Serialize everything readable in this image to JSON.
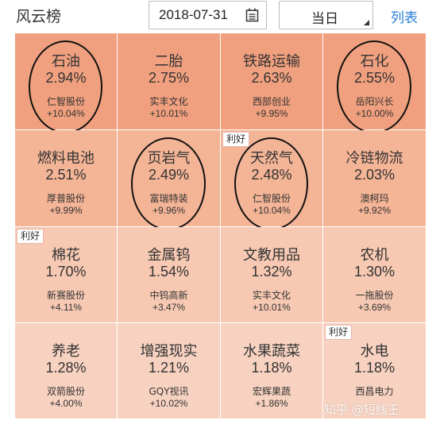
{
  "header": {
    "title": "风云榜",
    "date_value": "2018-07-31",
    "period_value": "当日",
    "list_label": "列表"
  },
  "colors": {
    "row1": "#f0a07e",
    "row2": "#f4b496",
    "row3": "#f7c9b3",
    "row4": "#f8d2c1",
    "link": "#2a7fd4"
  },
  "tiles": [
    {
      "name": "石油",
      "pct": "2.94%",
      "stock": "仁智股份",
      "stock_pct": "+10.04%",
      "badge": "",
      "circled": true
    },
    {
      "name": "二胎",
      "pct": "2.75%",
      "stock": "实丰文化",
      "stock_pct": "+10.01%",
      "badge": "",
      "circled": false
    },
    {
      "name": "铁路运输",
      "pct": "2.63%",
      "stock": "西部创业",
      "stock_pct": "+9.95%",
      "badge": "",
      "circled": false
    },
    {
      "name": "石化",
      "pct": "2.55%",
      "stock": "岳阳兴长",
      "stock_pct": "+10.00%",
      "badge": "",
      "circled": true
    },
    {
      "name": "燃料电池",
      "pct": "2.51%",
      "stock": "厚普股份",
      "stock_pct": "+9.99%",
      "badge": "",
      "circled": false
    },
    {
      "name": "页岩气",
      "pct": "2.49%",
      "stock": "富瑞特装",
      "stock_pct": "+9.96%",
      "badge": "",
      "circled": true
    },
    {
      "name": "天然气",
      "pct": "2.48%",
      "stock": "仁智股份",
      "stock_pct": "+10.04%",
      "badge": "利好",
      "circled": true
    },
    {
      "name": "冷链物流",
      "pct": "2.03%",
      "stock": "澳柯玛",
      "stock_pct": "+9.92%",
      "badge": "",
      "circled": false
    },
    {
      "name": "棉花",
      "pct": "1.70%",
      "stock": "新赛股份",
      "stock_pct": "+4.11%",
      "badge": "利好",
      "circled": false
    },
    {
      "name": "金属钨",
      "pct": "1.54%",
      "stock": "中钨高新",
      "stock_pct": "+3.47%",
      "badge": "",
      "circled": false
    },
    {
      "name": "文教用品",
      "pct": "1.32%",
      "stock": "实丰文化",
      "stock_pct": "+10.01%",
      "badge": "",
      "circled": false
    },
    {
      "name": "农机",
      "pct": "1.30%",
      "stock": "一拖股份",
      "stock_pct": "+3.69%",
      "badge": "",
      "circled": false
    },
    {
      "name": "养老",
      "pct": "1.28%",
      "stock": "双箭股份",
      "stock_pct": "+4.00%",
      "badge": "",
      "circled": false
    },
    {
      "name": "增强现实",
      "pct": "1.21%",
      "stock": "GQY视讯",
      "stock_pct": "+10.02%",
      "badge": "",
      "circled": false
    },
    {
      "name": "水果蔬菜",
      "pct": "1.18%",
      "stock": "宏辉果蔬",
      "stock_pct": "+1.86%",
      "badge": "",
      "circled": false
    },
    {
      "name": "水电",
      "pct": "1.18%",
      "stock": "西昌电力",
      "stock_pct": "",
      "badge": "利好",
      "circled": false
    }
  ],
  "watermark": "知乎 @短线王"
}
